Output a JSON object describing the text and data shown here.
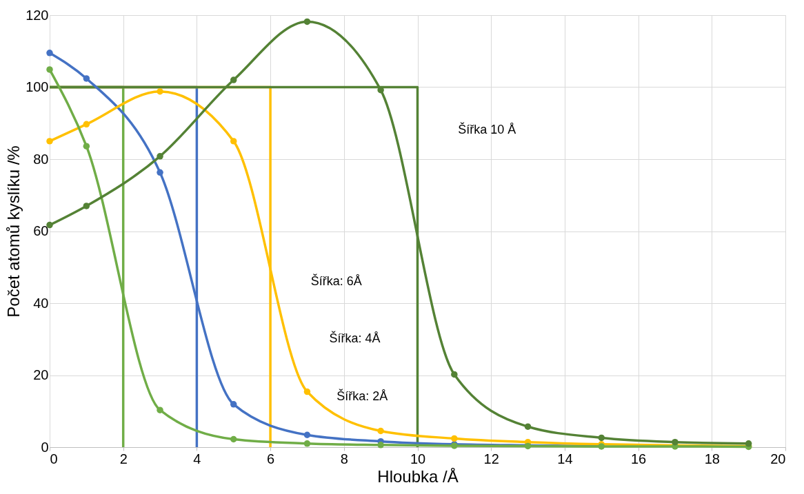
{
  "chart_data": {
    "type": "line",
    "xlabel": "Hloubka /Å",
    "ylabel": "Počet atomů kyslíku /%",
    "xlim": [
      0,
      20
    ],
    "xticks": [
      0,
      2,
      4,
      6,
      8,
      10,
      12,
      14,
      16,
      18,
      20
    ],
    "ylim": [
      0,
      120
    ],
    "yticks": [
      0,
      20,
      40,
      60,
      80,
      100,
      120
    ],
    "grid": true,
    "series": [
      {
        "color": "#70ad47",
        "x": [
          0,
          2,
          2
        ],
        "values": [
          100,
          100,
          0
        ],
        "marker": "none"
      },
      {
        "color": "#4472c4",
        "x": [
          0,
          4,
          4
        ],
        "values": [
          100,
          100,
          0
        ],
        "marker": "none"
      },
      {
        "color": "#ffc000",
        "x": [
          0,
          6,
          6
        ],
        "values": [
          100,
          100,
          0
        ],
        "marker": "none"
      },
      {
        "color": "#548235",
        "x": [
          0,
          10,
          10
        ],
        "values": [
          100,
          100,
          0
        ],
        "marker": "none"
      },
      {
        "color": "#4472c4",
        "x": [
          0,
          1,
          3,
          5,
          7,
          9,
          11,
          13,
          15
        ],
        "values": [
          109.5,
          102.4,
          76.3,
          11.9,
          3.4,
          1.6,
          0.8,
          0.5,
          0.3
        ],
        "marker": "circle"
      },
      {
        "color": "#ffc000",
        "x": [
          0,
          1,
          3,
          5,
          7,
          9,
          11,
          13,
          15,
          17,
          19
        ],
        "values": [
          85.0,
          89.7,
          98.8,
          85.0,
          15.4,
          4.5,
          2.4,
          1.4,
          0.8,
          0.5,
          0.3
        ],
        "marker": "circle"
      },
      {
        "color": "#70ad47",
        "x": [
          0,
          1,
          3,
          5,
          7,
          9,
          11,
          13,
          15,
          17,
          19
        ],
        "values": [
          104.9,
          83.6,
          10.3,
          2.2,
          1.0,
          0.6,
          0.4,
          0.3,
          0.2,
          0.2,
          0.1
        ],
        "marker": "circle"
      },
      {
        "color": "#548235",
        "x": [
          0,
          1,
          3,
          5,
          7,
          9,
          11,
          13,
          15,
          17,
          19
        ],
        "values": [
          61.7,
          67.0,
          80.8,
          102.0,
          118.2,
          99.2,
          20.2,
          5.7,
          2.6,
          1.4,
          1.0
        ],
        "marker": "circle"
      }
    ],
    "annotations": [
      "Šířka 10 Å",
      "Šířka: 6Å",
      "Šířka: 4Å",
      "Šířka: 2Å"
    ]
  }
}
